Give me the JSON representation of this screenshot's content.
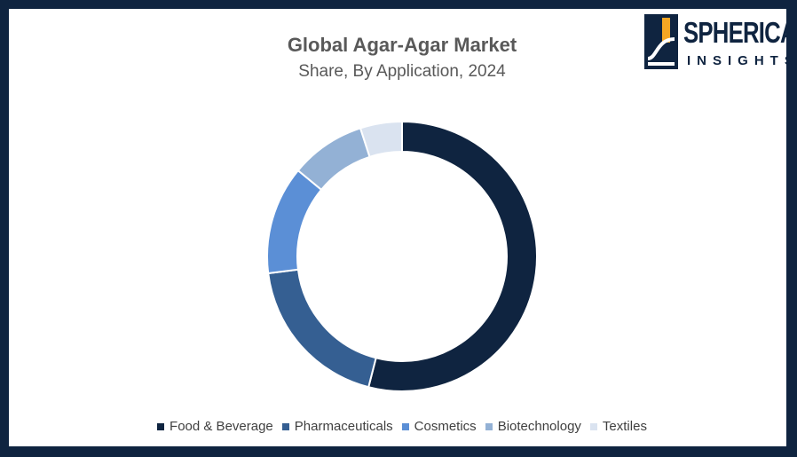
{
  "chart_data": {
    "type": "pie",
    "title": "Global Agar-Agar Market",
    "subtitle": "Share, By Application, 2024",
    "categories": [
      "Food & Beverage",
      "Pharmaceuticals",
      "Cosmetics",
      "Biotechnology",
      "Textiles"
    ],
    "values": [
      54,
      19,
      13,
      9,
      5
    ],
    "colors": [
      "#0f2440",
      "#355f92",
      "#5b8fd6",
      "#93b1d5",
      "#dae3f0"
    ],
    "legend_position": "bottom",
    "donut": true
  },
  "logo": {
    "line1": "SPHERICAL",
    "line2": "INSIGHTS"
  }
}
